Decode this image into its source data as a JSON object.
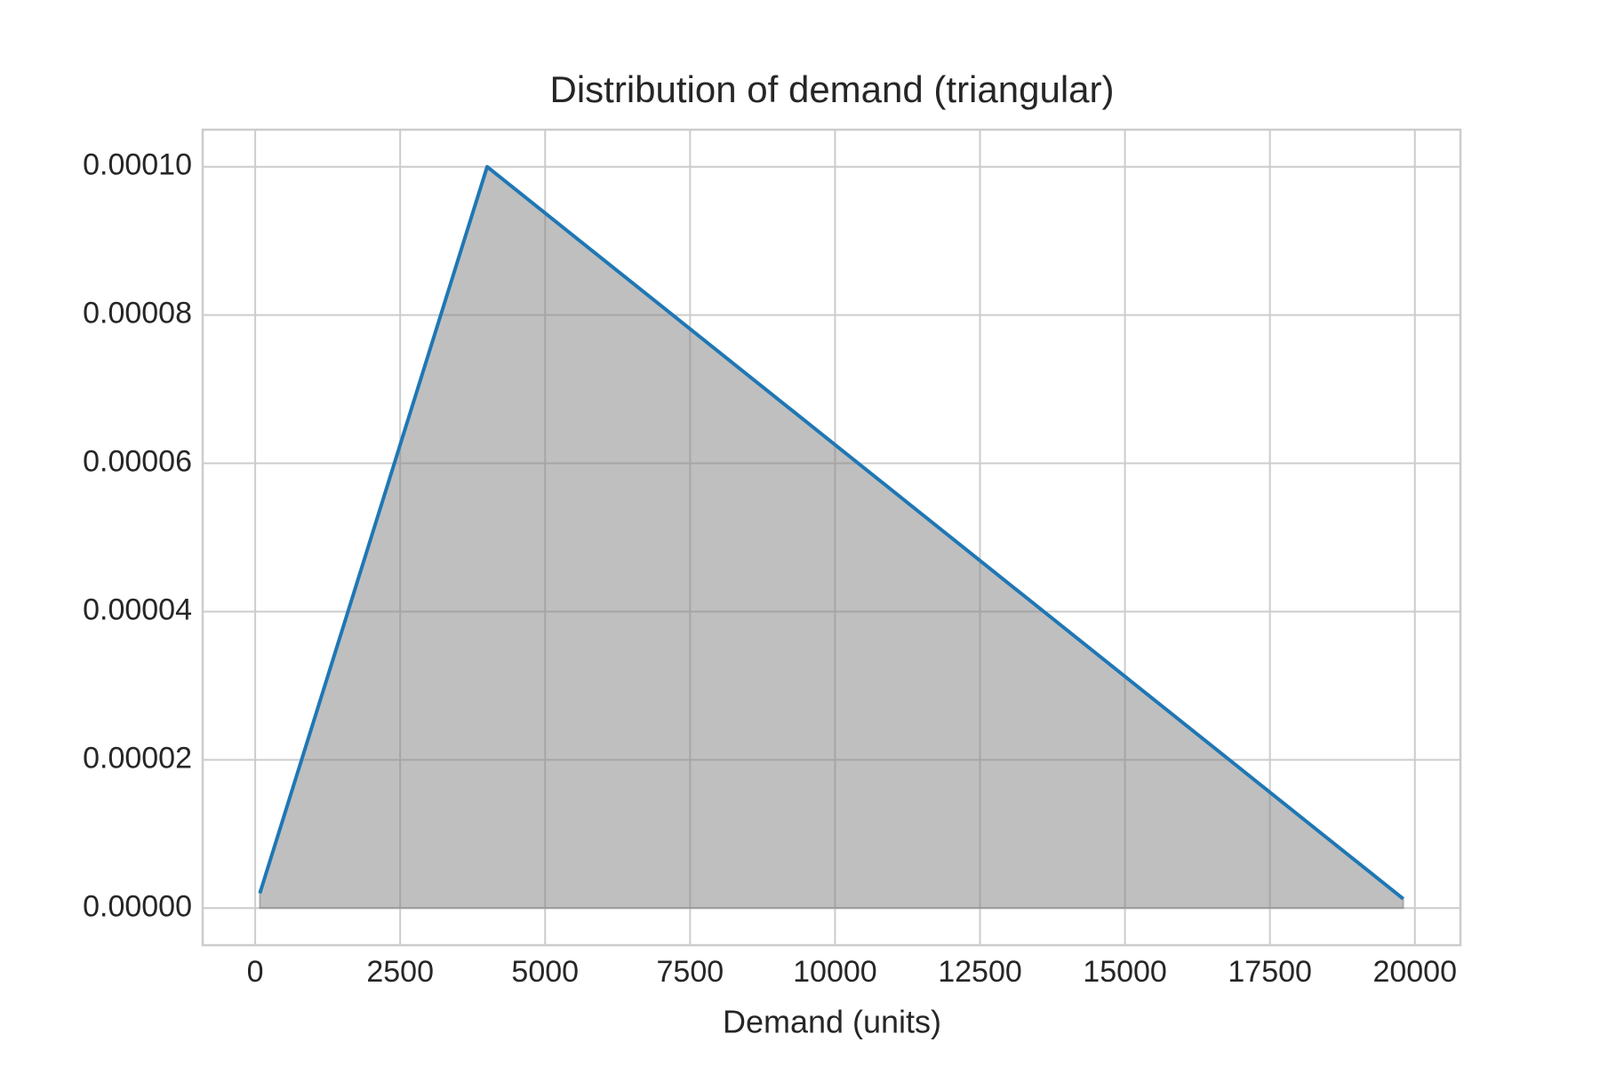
{
  "chart_data": {
    "type": "line",
    "title": "Distribution of demand (triangular)",
    "xlabel": "Demand (units)",
    "x": [
      80,
      4000,
      19800
    ],
    "series": [
      {
        "color": "#1f77b4",
        "values": [
          2e-06,
          0.0001,
          1.25e-06
        ]
      }
    ],
    "fill": true,
    "fill_color": "#808080",
    "xlim": [
      -906,
      20786
    ],
    "ylim": [
      -5e-06,
      0.000105
    ],
    "xticks": [
      0,
      2500,
      5000,
      7500,
      10000,
      12500,
      15000,
      17500,
      20000
    ],
    "yticks": [
      {
        "value": 0,
        "label": "0.00000"
      },
      {
        "value": 2e-05,
        "label": "0.00002"
      },
      {
        "value": 4e-05,
        "label": "0.00004"
      },
      {
        "value": 6e-05,
        "label": "0.00006"
      },
      {
        "value": 8e-05,
        "label": "0.00008"
      },
      {
        "value": 0.0001,
        "label": "0.00010"
      }
    ],
    "grid": true
  }
}
